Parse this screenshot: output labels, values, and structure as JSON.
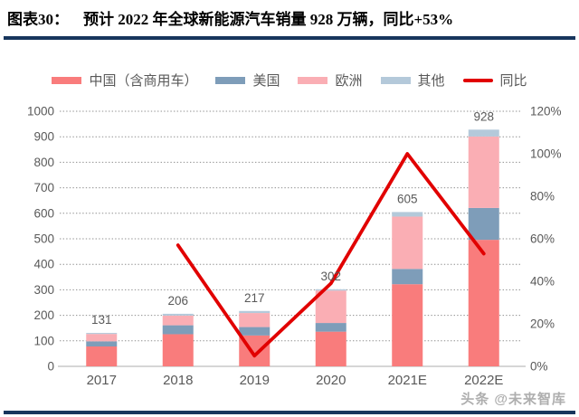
{
  "header": {
    "label": "图表30：",
    "title": "预计 2022 年全球新能源汽车销量 928 万辆，同比+53%"
  },
  "watermark": "头条 @未来智库",
  "colors": {
    "divider_navy": "#17365d",
    "axis_text_gray": "#595959",
    "gridline_gray": "#8f8f8f",
    "baseline_gray": "#c9c9c9",
    "yoy_line_red": "#e10000"
  },
  "chart_data": {
    "type": "bar",
    "subtype": "stacked-bars-with-line",
    "categories": [
      "2017",
      "2018",
      "2019",
      "2020",
      "2021E",
      "2022E"
    ],
    "series": [
      {
        "name": "中国（含商用车）",
        "color": "#f97c7c",
        "values": [
          78,
          126,
          121,
          136,
          322,
          496
        ]
      },
      {
        "name": "美国",
        "color": "#7e9db9",
        "values": [
          20,
          35,
          33,
          34,
          60,
          125
        ]
      },
      {
        "name": "欧洲",
        "color": "#faaeb4",
        "values": [
          29,
          38,
          55,
          127,
          205,
          280
        ]
      },
      {
        "name": "其他",
        "color": "#b4c9da",
        "values": [
          4,
          7,
          8,
          5,
          18,
          27
        ]
      }
    ],
    "totals": [
      131,
      206,
      217,
      302,
      605,
      928
    ],
    "line": {
      "name": "同比",
      "color": "#e10000",
      "values": [
        null,
        57,
        5,
        39,
        100,
        53
      ],
      "unit": "%"
    },
    "left_axis": {
      "min": 0,
      "max": 1000,
      "step": 100
    },
    "right_axis": {
      "min": 0,
      "max": 120,
      "step": 20,
      "format": "%"
    },
    "grid": "dotted-horizontal",
    "legend_position": "top-center"
  }
}
